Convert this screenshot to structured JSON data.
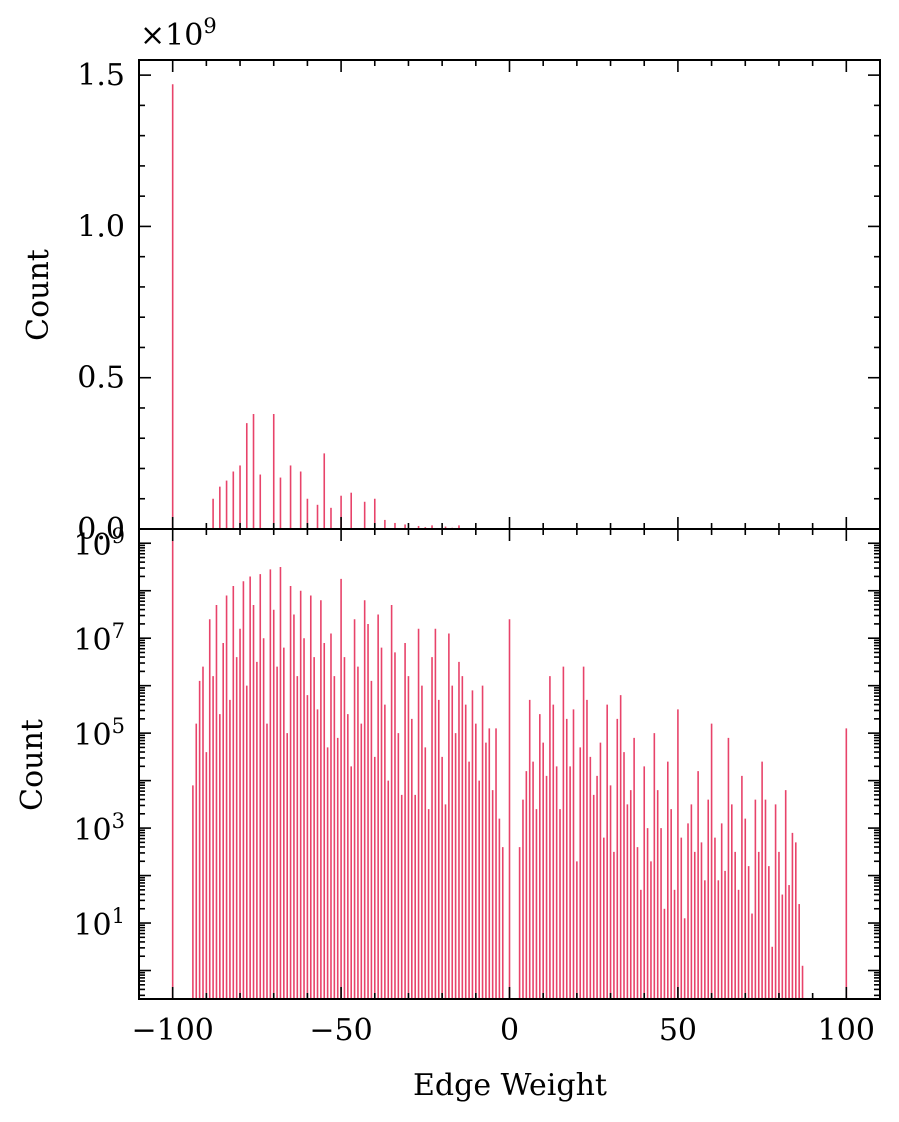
{
  "figure": {
    "xlabel": "Edge Weight",
    "x_ticks": [
      {
        "value": -100,
        "label": "−100"
      },
      {
        "value": -50,
        "label": "−50"
      },
      {
        "value": 0,
        "label": "0"
      },
      {
        "value": 50,
        "label": "50"
      },
      {
        "value": 100,
        "label": "100"
      }
    ],
    "bar_color": "#e8436a"
  },
  "chart_data": [
    {
      "type": "bar",
      "scale": "linear",
      "ylabel": "Count",
      "multiplier_label": "×10",
      "multiplier_exp": "9",
      "xlim": [
        -110,
        110
      ],
      "ylim": [
        0,
        1.55
      ],
      "y_ticks": [
        {
          "value": 0,
          "label": "0.0"
        },
        {
          "value": 0.5,
          "label": "0.5"
        },
        {
          "value": 1.0,
          "label": "1.0"
        },
        {
          "value": 1.5,
          "label": "1.5"
        }
      ],
      "points": [
        [
          -100,
          1.47
        ],
        [
          -88,
          0.1
        ],
        [
          -86,
          0.14
        ],
        [
          -84,
          0.16
        ],
        [
          -82,
          0.19
        ],
        [
          -80,
          0.21
        ],
        [
          -78,
          0.35
        ],
        [
          -76,
          0.38
        ],
        [
          -74,
          0.18
        ],
        [
          -70,
          0.38
        ],
        [
          -68,
          0.17
        ],
        [
          -65,
          0.21
        ],
        [
          -62,
          0.19
        ],
        [
          -60,
          0.1
        ],
        [
          -57,
          0.08
        ],
        [
          -55,
          0.25
        ],
        [
          -53,
          0.07
        ],
        [
          -50,
          0.11
        ],
        [
          -47,
          0.12
        ],
        [
          -43,
          0.09
        ],
        [
          -40,
          0.1
        ],
        [
          -37,
          0.03
        ],
        [
          -34,
          0.02
        ],
        [
          -31,
          0.015
        ],
        [
          -27,
          0.01
        ],
        [
          -25,
          0.006
        ],
        [
          -23,
          0.012
        ],
        [
          -19,
          0.008
        ],
        [
          -17,
          0.004
        ],
        [
          -15,
          0.012
        ]
      ]
    },
    {
      "type": "bar",
      "scale": "log",
      "ylabel": "Count",
      "xlim": [
        -110,
        110
      ],
      "ylim_exp": [
        -0.6,
        9.3
      ],
      "y_ticks": [
        {
          "exp": 1,
          "base": "10",
          "sup": "1"
        },
        {
          "exp": 3,
          "base": "10",
          "sup": "3"
        },
        {
          "exp": 5,
          "base": "10",
          "sup": "5"
        },
        {
          "exp": 7,
          "base": "10",
          "sup": "7"
        },
        {
          "exp": 9,
          "base": "10",
          "sup": "9"
        }
      ],
      "points": [
        [
          -100,
          9.05
        ],
        [
          -94,
          3.9
        ],
        [
          -93,
          5.2
        ],
        [
          -92,
          6.1
        ],
        [
          -91,
          6.4
        ],
        [
          -90,
          4.6
        ],
        [
          -89,
          7.4
        ],
        [
          -88,
          6.2
        ],
        [
          -87,
          7.7
        ],
        [
          -86,
          5.4
        ],
        [
          -85,
          6.9
        ],
        [
          -84,
          7.9
        ],
        [
          -83,
          5.7
        ],
        [
          -82,
          8.1
        ],
        [
          -81,
          6.6
        ],
        [
          -80,
          7.2
        ],
        [
          -79,
          8.2
        ],
        [
          -78,
          6.0
        ],
        [
          -77,
          8.3
        ],
        [
          -76,
          7.7
        ],
        [
          -75,
          6.5
        ],
        [
          -74,
          8.35
        ],
        [
          -73,
          7.0
        ],
        [
          -72,
          5.2
        ],
        [
          -71,
          8.45
        ],
        [
          -70,
          7.6
        ],
        [
          -69,
          6.4
        ],
        [
          -68,
          8.5
        ],
        [
          -67,
          6.8
        ],
        [
          -66,
          5.0
        ],
        [
          -65,
          8.1
        ],
        [
          -64,
          7.5
        ],
        [
          -63,
          6.2
        ],
        [
          -62,
          8.0
        ],
        [
          -61,
          7.0
        ],
        [
          -60,
          5.8
        ],
        [
          -59,
          7.9
        ],
        [
          -58,
          6.6
        ],
        [
          -57,
          5.5
        ],
        [
          -56,
          7.8
        ],
        [
          -55,
          6.9
        ],
        [
          -54,
          4.7
        ],
        [
          -53,
          7.1
        ],
        [
          -52,
          6.2
        ],
        [
          -51,
          4.9
        ],
        [
          -50,
          8.25
        ],
        [
          -49,
          6.6
        ],
        [
          -48,
          5.4
        ],
        [
          -47,
          4.3
        ],
        [
          -46,
          7.4
        ],
        [
          -45,
          6.4
        ],
        [
          -44,
          5.2
        ],
        [
          -43,
          7.8
        ],
        [
          -42,
          7.3
        ],
        [
          -41,
          6.1
        ],
        [
          -40,
          4.5
        ],
        [
          -39,
          7.5
        ],
        [
          -38,
          6.8
        ],
        [
          -37,
          5.6
        ],
        [
          -36,
          4.0
        ],
        [
          -35,
          7.7
        ],
        [
          -34,
          6.7
        ],
        [
          -33,
          5.0
        ],
        [
          -32,
          3.7
        ],
        [
          -31,
          6.9
        ],
        [
          -30,
          6.2
        ],
        [
          -29,
          5.3
        ],
        [
          -28,
          3.7
        ],
        [
          -27,
          7.2
        ],
        [
          -26,
          6.0
        ],
        [
          -25,
          4.7
        ],
        [
          -24,
          3.4
        ],
        [
          -23,
          6.6
        ],
        [
          -22,
          7.2
        ],
        [
          -21,
          5.7
        ],
        [
          -20,
          4.5
        ],
        [
          -19,
          3.5
        ],
        [
          -18,
          7.1
        ],
        [
          -17,
          6.0
        ],
        [
          -16,
          5.0
        ],
        [
          -15,
          6.5
        ],
        [
          -14,
          6.2
        ],
        [
          -13,
          5.6
        ],
        [
          -12,
          4.4
        ],
        [
          -11,
          5.9
        ],
        [
          -10,
          5.2
        ],
        [
          -9,
          4.0
        ],
        [
          -8,
          6.0
        ],
        [
          -7,
          4.8
        ],
        [
          -6,
          5.1
        ],
        [
          -5,
          3.8
        ],
        [
          -4,
          5.1
        ],
        [
          -3,
          3.2
        ],
        [
          -2,
          2.6
        ],
        [
          0,
          7.4
        ],
        [
          3,
          2.6
        ],
        [
          4,
          3.6
        ],
        [
          5,
          4.2
        ],
        [
          6,
          5.7
        ],
        [
          7,
          4.4
        ],
        [
          8,
          3.4
        ],
        [
          9,
          5.4
        ],
        [
          10,
          4.8
        ],
        [
          11,
          4.1
        ],
        [
          12,
          6.2
        ],
        [
          13,
          5.6
        ],
        [
          14,
          4.3
        ],
        [
          15,
          3.4
        ],
        [
          16,
          6.4
        ],
        [
          17,
          5.3
        ],
        [
          18,
          4.3
        ],
        [
          19,
          5.5
        ],
        [
          20,
          2.3
        ],
        [
          21,
          4.7
        ],
        [
          22,
          6.4
        ],
        [
          23,
          5.7
        ],
        [
          24,
          4.5
        ],
        [
          25,
          3.7
        ],
        [
          26,
          4.1
        ],
        [
          27,
          4.8
        ],
        [
          28,
          2.8
        ],
        [
          29,
          5.6
        ],
        [
          30,
          3.9
        ],
        [
          31,
          2.5
        ],
        [
          32,
          5.3
        ],
        [
          33,
          5.8
        ],
        [
          34,
          4.6
        ],
        [
          35,
          3.5
        ],
        [
          36,
          3.8
        ],
        [
          37,
          4.9
        ],
        [
          38,
          2.6
        ],
        [
          39,
          1.7
        ],
        [
          40,
          4.3
        ],
        [
          41,
          3.0
        ],
        [
          42,
          2.3
        ],
        [
          43,
          5.0
        ],
        [
          44,
          3.8
        ],
        [
          45,
          3.0
        ],
        [
          46,
          1.3
        ],
        [
          47,
          4.4
        ],
        [
          48,
          3.4
        ],
        [
          49,
          1.7
        ],
        [
          50,
          5.5
        ],
        [
          51,
          2.8
        ],
        [
          52,
          1.1
        ],
        [
          53,
          3.1
        ],
        [
          54,
          3.5
        ],
        [
          55,
          2.5
        ],
        [
          56,
          4.2
        ],
        [
          57,
          2.7
        ],
        [
          58,
          1.9
        ],
        [
          59,
          3.6
        ],
        [
          60,
          5.2
        ],
        [
          61,
          2.8
        ],
        [
          62,
          1.9
        ],
        [
          63,
          3.1
        ],
        [
          64,
          2.1
        ],
        [
          65,
          4.9
        ],
        [
          66,
          3.5
        ],
        [
          67,
          2.5
        ],
        [
          68,
          1.7
        ],
        [
          69,
          4.1
        ],
        [
          70,
          3.2
        ],
        [
          71,
          2.2
        ],
        [
          72,
          1.2
        ],
        [
          73,
          3.6
        ],
        [
          74,
          2.5
        ],
        [
          75,
          4.4
        ],
        [
          76,
          3.6
        ],
        [
          77,
          2.2
        ],
        [
          78,
          0.5
        ],
        [
          79,
          3.5
        ],
        [
          80,
          2.5
        ],
        [
          81,
          1.6
        ],
        [
          82,
          3.8
        ],
        [
          83,
          1.8
        ],
        [
          84,
          2.9
        ],
        [
          85,
          2.7
        ],
        [
          86,
          1.4
        ],
        [
          87,
          0.1
        ],
        [
          100,
          5.1
        ]
      ]
    }
  ]
}
